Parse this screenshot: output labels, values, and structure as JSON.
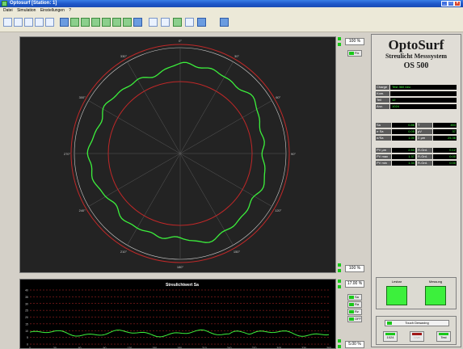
{
  "window": {
    "title": "Optosurf [Station: 1]",
    "controls": [
      "minimize-icon",
      "maximize-icon",
      "close-icon"
    ]
  },
  "menu": {
    "items": [
      "Datei",
      "Simulation",
      "Einstellungen",
      "?"
    ]
  },
  "toolbar": {
    "icons": [
      "new-file-icon",
      "edit-icon",
      "open-icon",
      "save-icon",
      "measure-icon",
      "view-a-icon",
      "view-b-icon",
      "view-c-icon",
      "view-d-icon",
      "view-e-icon",
      "view-f-icon",
      "view-g-icon",
      "view-h-icon",
      "arrow-icon",
      "cross-icon",
      "pen-icon",
      "rocket-icon",
      "eraser-icon",
      "settings-icon"
    ]
  },
  "polar": {
    "scale_top": "100 %",
    "scale_bottom": "100 %",
    "toggle": "Fix",
    "angle_labels": [
      "0°",
      "30°",
      "60°",
      "90°",
      "120°",
      "150°",
      "180°",
      "210°",
      "240°",
      "270°",
      "300°",
      "330°"
    ]
  },
  "trend": {
    "title": "Streulichtwert Sa",
    "scale_top": "17.00 %",
    "scale_bottom": "5.00 %",
    "y_ticks": [
      "40",
      "35",
      "30",
      "25",
      "20",
      "15",
      "10",
      "5",
      "0"
    ],
    "x_ticks": [
      "0",
      "30",
      "60",
      "90",
      "120",
      "150",
      "180",
      "210",
      "240",
      "270",
      "300",
      "330",
      "360"
    ],
    "toggles": [
      "Sa",
      "Ra",
      "Rz",
      "OFF"
    ]
  },
  "brand": {
    "name": "OptoSurf",
    "subtitle": "Streulicht Messsystem",
    "model": "OS 500"
  },
  "info": [
    {
      "label": "Charge",
      "value": "Test 360 neu"
    },
    {
      "label": "Kom.",
      "value": ""
    },
    {
      "label": "Teil",
      "value": "12"
    },
    {
      "label": "Anz.",
      "value": "1024"
    }
  ],
  "measurements": [
    [
      {
        "label": "Sa",
        "value": "0.86"
      },
      {
        "label": "T",
        "value": "453"
      }
    ],
    [
      {
        "label": "σ Sa",
        "value": "0.05"
      },
      {
        "label": "pV",
        "value": "37"
      }
    ],
    [
      {
        "label": "σ/Sa",
        "value": "1.00"
      },
      {
        "label": "Σ μm",
        "value": "25.36"
      }
    ]
  ],
  "pv": [
    {
      "label": "PV μm",
      "value": "2.53",
      "flabel": "R-Grd.",
      "fvalue": "0.12"
    },
    {
      "label": "PV max",
      "value": "1.37",
      "flabel": "R-Grd.",
      "fvalue": "0.00"
    },
    {
      "label": "PV min",
      "value": "1.34",
      "flabel": "R-Grd.",
      "fvalue": "0.00"
    }
  ],
  "state": {
    "left": "Lesbar",
    "right": "Messung"
  },
  "bottom": {
    "touch": "Touch Dewaxing",
    "btn1": "1024",
    "btn2": "Live",
    "btn3": "Test"
  },
  "colors": {
    "trace": "#3cf03c",
    "ring": "#c02828",
    "background": "#000000"
  }
}
